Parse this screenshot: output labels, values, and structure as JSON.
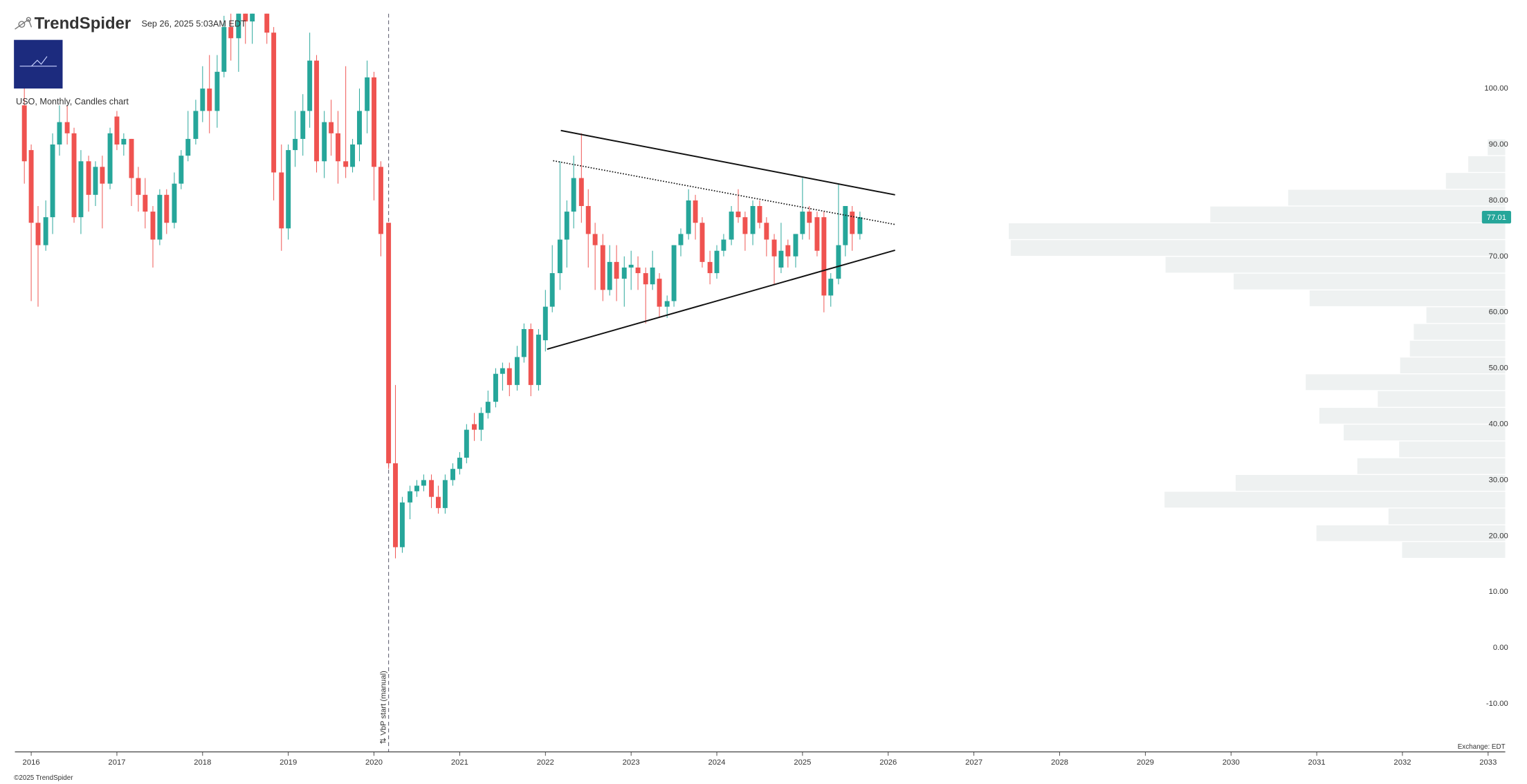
{
  "header": {
    "brand": "TrendSpider",
    "timestamp": "Sep 26, 2025 5:03AM EDT",
    "chart_label": "USO, Monthly, Candles chart"
  },
  "footer": {
    "copyright": "©2025 TrendSpider",
    "exchange": "Exchange: EDT"
  },
  "chart_data": {
    "type": "candlestick",
    "x": [
      2015.92,
      2016,
      2016.08,
      2016.17,
      2016.25,
      2016.33,
      2016.42,
      2016.5,
      2016.58,
      2016.67,
      2016.75,
      2016.83,
      2016.92,
      2017,
      2017.08,
      2017.17,
      2017.25,
      2017.33,
      2017.42,
      2017.5,
      2017.58,
      2017.67,
      2017.75,
      2017.83,
      2017.92,
      2018,
      2018.08,
      2018.17,
      2018.25,
      2018.33,
      2018.42,
      2018.5,
      2018.58,
      2018.67,
      2018.75,
      2018.83,
      2018.92,
      2019,
      2019.08,
      2019.17,
      2019.25,
      2019.33,
      2019.42,
      2019.5,
      2019.58,
      2019.67,
      2019.75,
      2019.83,
      2019.92,
      2020,
      2020.08,
      2020.17,
      2020.25,
      2020.33,
      2020.42,
      2020.5,
      2020.58,
      2020.67,
      2020.75,
      2020.83,
      2020.92,
      2021,
      2021.08,
      2021.17,
      2021.25,
      2021.33,
      2021.42,
      2021.5,
      2021.58,
      2021.67,
      2021.75,
      2021.83,
      2021.92,
      2022,
      2022.08,
      2022.17,
      2022.25,
      2022.33,
      2022.42,
      2022.5,
      2022.58,
      2022.67,
      2022.75,
      2022.83,
      2022.92,
      2023,
      2023.08,
      2023.17,
      2023.25,
      2023.33,
      2023.42,
      2023.5,
      2023.58,
      2023.67,
      2023.75,
      2023.83,
      2023.92,
      2024,
      2024.08,
      2024.17,
      2024.25,
      2024.33,
      2024.42,
      2024.5,
      2024.58,
      2024.67,
      2024.75,
      2024.83,
      2024.92,
      2025,
      2025.08,
      2025.17,
      2025.25,
      2025.33,
      2025.42,
      2025.5,
      2025.58,
      2025.67
    ],
    "open": [
      97,
      89,
      76,
      72,
      77,
      90,
      94,
      92,
      77,
      87,
      81,
      86,
      83,
      95,
      90,
      91,
      84,
      81,
      78,
      73,
      81,
      76,
      83,
      88,
      91,
      96,
      100,
      96,
      103,
      111,
      109,
      115,
      112,
      117,
      121,
      110,
      85,
      75,
      89,
      91,
      96,
      105,
      87,
      94,
      92,
      87,
      86,
      90,
      96,
      102,
      86,
      76,
      33,
      18,
      26,
      28,
      29,
      30,
      27,
      25,
      30,
      32,
      34,
      40,
      39,
      42,
      44,
      49,
      50,
      47,
      52,
      57,
      47,
      55,
      61,
      67,
      73,
      78,
      84,
      79,
      74,
      72,
      64,
      69,
      66,
      68,
      68,
      67,
      65,
      66,
      61,
      62,
      72,
      74,
      80,
      76,
      69,
      67,
      71,
      73,
      78,
      77,
      74,
      79,
      76,
      73,
      68,
      72,
      70,
      74,
      78,
      77,
      77,
      63,
      66,
      72,
      78,
      74
    ],
    "high": [
      103,
      90,
      79,
      80,
      92,
      97,
      97,
      93,
      89,
      88,
      87,
      88,
      93,
      96,
      92,
      91,
      86,
      84,
      79,
      82,
      82,
      85,
      89,
      96,
      98,
      104,
      106,
      106,
      113,
      118,
      118,
      120,
      118,
      124,
      122,
      111,
      90,
      90,
      96,
      99,
      110,
      106,
      96,
      98,
      96,
      104,
      91,
      100,
      105,
      103,
      87,
      76,
      47,
      27,
      29,
      30,
      31,
      31,
      29,
      31,
      33,
      35,
      40,
      42,
      43,
      46,
      50,
      51,
      51,
      54,
      58,
      58,
      57,
      64,
      72,
      87,
      80,
      88,
      92,
      82,
      76,
      74,
      72,
      72,
      70,
      71,
      70,
      68,
      71,
      67,
      63,
      72,
      75,
      82,
      81,
      77,
      71,
      72,
      74,
      79,
      82,
      78,
      80,
      80,
      77,
      74,
      76,
      73,
      74,
      84,
      79,
      78,
      78,
      67,
      83,
      79,
      79,
      78
    ],
    "low": [
      83,
      62,
      61,
      71,
      74,
      88,
      90,
      76,
      74,
      78,
      79,
      75,
      82,
      89,
      88,
      79,
      78,
      75,
      68,
      72,
      74,
      75,
      82,
      87,
      90,
      94,
      92,
      93,
      102,
      105,
      103,
      108,
      108,
      114,
      108,
      80,
      71,
      73,
      86,
      88,
      93,
      85,
      84,
      88,
      83,
      84,
      85,
      87,
      92,
      80,
      70,
      32,
      16,
      17,
      23,
      27,
      28,
      25,
      24,
      24,
      29,
      31,
      33,
      37,
      37,
      41,
      43,
      46,
      45,
      46,
      51,
      45,
      46,
      53,
      60,
      64,
      68,
      75,
      76,
      68,
      64,
      62,
      63,
      62,
      61,
      64,
      64,
      58,
      64,
      59,
      59,
      61,
      70,
      73,
      73,
      68,
      65,
      66,
      70,
      72,
      76,
      71,
      72,
      75,
      70,
      65,
      67,
      68,
      68,
      73,
      73,
      70,
      60,
      61,
      65,
      70,
      71,
      73
    ],
    "close": [
      87,
      76,
      72,
      77,
      90,
      94,
      92,
      77,
      87,
      81,
      86,
      83,
      92,
      90,
      91,
      84,
      81,
      78,
      73,
      81,
      76,
      83,
      88,
      91,
      96,
      100,
      96,
      103,
      111,
      109,
      115,
      112,
      117,
      121,
      110,
      85,
      75,
      89,
      91,
      96,
      105,
      87,
      94,
      92,
      87,
      86,
      90,
      96,
      102,
      86,
      74,
      33,
      18,
      26,
      28,
      29,
      30,
      27,
      25,
      30,
      32,
      34,
      39,
      39,
      42,
      44,
      49,
      50,
      47,
      52,
      57,
      47,
      56,
      61,
      67,
      73,
      78,
      84,
      79,
      74,
      72,
      64,
      69,
      66,
      68,
      68.5,
      67,
      65,
      68,
      61,
      62,
      72,
      74,
      80,
      76,
      69,
      67,
      71,
      73,
      78,
      77,
      74,
      79,
      76,
      73,
      70,
      71,
      70,
      74,
      78,
      76,
      71,
      63,
      66,
      72,
      79,
      74,
      77
    ],
    "up_color": "#26a69a",
    "down_color": "#ef5350",
    "xlim": [
      2015.81,
      2033.2
    ],
    "ylim": [
      -18.6,
      113.4
    ],
    "xticks": [
      2016,
      2017,
      2018,
      2019,
      2020,
      2021,
      2022,
      2023,
      2024,
      2025,
      2026,
      2027,
      2028,
      2029,
      2030,
      2031,
      2032,
      2033
    ],
    "yticks": [
      {
        "value": -10,
        "label": "-10.00"
      },
      {
        "value": 0,
        "label": "0.00"
      },
      {
        "value": 10,
        "label": "10.00"
      },
      {
        "value": 20,
        "label": "20.00"
      },
      {
        "value": 30,
        "label": "30.00"
      },
      {
        "value": 40,
        "label": "40.00"
      },
      {
        "value": 50,
        "label": "50.00"
      },
      {
        "value": 60,
        "label": "60.00"
      },
      {
        "value": 70,
        "label": "70.00"
      },
      {
        "value": 80,
        "label": "80.00"
      },
      {
        "value": 90,
        "label": "90.00"
      },
      {
        "value": 100,
        "label": "100.00"
      }
    ],
    "y_axis_side": "right",
    "last_price": 77.01,
    "last_price_color": "#26a69a",
    "volume_profile": {
      "bins": [
        16,
        19,
        22,
        25,
        28,
        31,
        34,
        37,
        40,
        43,
        46,
        49,
        52,
        55,
        58,
        61,
        64,
        67,
        70,
        73,
        76,
        79,
        82,
        85,
        88,
        91
      ],
      "volumes": [
        106,
        194,
        120,
        350,
        277,
        152,
        109,
        166,
        191,
        131,
        205,
        108,
        98,
        94,
        81,
        201,
        279,
        349,
        508,
        510,
        303,
        223,
        61,
        38,
        18
      ],
      "color": "#eef1f1"
    },
    "trendlines": [
      {
        "style": "solid",
        "x": [
          2022.18,
          2026.08
        ],
        "y": [
          92.5,
          81.0
        ]
      },
      {
        "style": "dotted",
        "x": [
          2022.09,
          2026.08
        ],
        "y": [
          87.1,
          75.7
        ]
      },
      {
        "style": "solid",
        "x": [
          2022.02,
          2026.08
        ],
        "y": [
          53.4,
          71.1
        ]
      }
    ],
    "vbp_start": {
      "x": 2020.17,
      "label": "⇅ VbP start (manual)"
    }
  }
}
